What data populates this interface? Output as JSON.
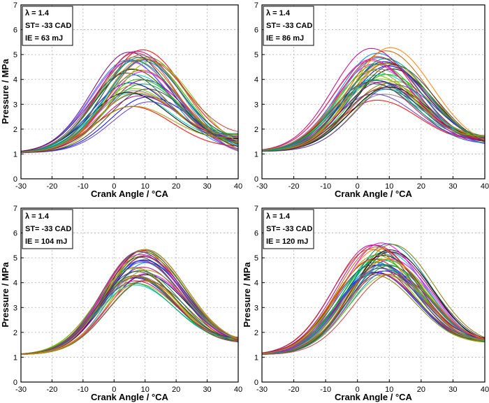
{
  "chart_data": [
    {
      "type": "line",
      "panel": "top-left",
      "xlabel": "Crank Angle / °CA",
      "ylabel": "Pressure / MPa",
      "xlim": [
        -30,
        40
      ],
      "ylim": [
        0,
        7
      ],
      "xticks": [
        -30,
        -20,
        -10,
        0,
        10,
        20,
        30,
        40
      ],
      "yticks": [
        0,
        1,
        2,
        3,
        4,
        5,
        6,
        7
      ],
      "grid": true,
      "annotation": [
        "λ = 1.4",
        "ST= -33 CAD",
        "IE = 63 mJ"
      ],
      "n_cycles": 40,
      "start_pressure": 1.05,
      "peak_range": [
        2.9,
        5.2
      ],
      "peak_angle_range": [
        3,
        12
      ],
      "end_pressure_range": [
        1.1,
        1.9
      ]
    },
    {
      "type": "line",
      "panel": "top-right",
      "xlabel": "Crank Angle / °CA",
      "ylabel": "",
      "xlim": [
        -30,
        40
      ],
      "ylim": [
        0,
        7
      ],
      "xticks": [
        -30,
        -20,
        -10,
        0,
        10,
        20,
        30,
        40
      ],
      "yticks": [
        0,
        1,
        2,
        3,
        4,
        5,
        6,
        7
      ],
      "grid": true,
      "annotation": [
        "λ = 1.4",
        "ST= -33 CAD",
        "IE = 86 mJ"
      ],
      "n_cycles": 40,
      "start_pressure": 1.1,
      "peak_range": [
        3.15,
        5.3
      ],
      "peak_angle_range": [
        4,
        12
      ],
      "end_pressure_range": [
        1.4,
        1.75
      ]
    },
    {
      "type": "line",
      "panel": "bottom-left",
      "xlabel": "Crank Angle / °CA",
      "ylabel": "Pressure / MPa",
      "xlim": [
        -30,
        40
      ],
      "ylim": [
        0,
        7
      ],
      "xticks": [
        -30,
        -20,
        -10,
        0,
        10,
        20,
        30,
        40
      ],
      "yticks": [
        0,
        1,
        2,
        3,
        4,
        5,
        6,
        7
      ],
      "grid": true,
      "annotation": [
        "λ = 1.4",
        "ST= -33 CAD",
        "IE = 104 mJ"
      ],
      "n_cycles": 40,
      "start_pressure": 1.1,
      "peak_range": [
        3.9,
        5.35
      ],
      "peak_angle_range": [
        6,
        11
      ],
      "end_pressure_range": [
        1.6,
        1.8
      ]
    },
    {
      "type": "line",
      "panel": "bottom-right",
      "xlabel": "Crank Angle / °CA",
      "ylabel": "Pressure / MPa",
      "xlim": [
        -30,
        40
      ],
      "ylim": [
        0,
        7
      ],
      "xticks": [
        -30,
        -20,
        -10,
        0,
        10,
        20,
        30,
        40
      ],
      "yticks": [
        0,
        1,
        2,
        3,
        4,
        5,
        6,
        7
      ],
      "grid": true,
      "annotation": [
        "λ = 1.4",
        "ST= -33 CAD",
        "IE = 120 mJ"
      ],
      "n_cycles": 40,
      "start_pressure": 1.1,
      "peak_range": [
        4.3,
        5.65
      ],
      "peak_angle_range": [
        4,
        11
      ],
      "end_pressure_range": [
        1.6,
        1.8
      ]
    }
  ],
  "series_colors": [
    "#000000",
    "#ff0000",
    "#0000ff",
    "#00c000",
    "#ff00ff",
    "#00c8c8",
    "#808000",
    "#800080",
    "#808080",
    "#c06000",
    "#0080ff",
    "#80c000",
    "#c00080",
    "#008080",
    "#6040c0",
    "#ff8000",
    "#404040",
    "#00a060",
    "#a0a000",
    "#c04040"
  ]
}
